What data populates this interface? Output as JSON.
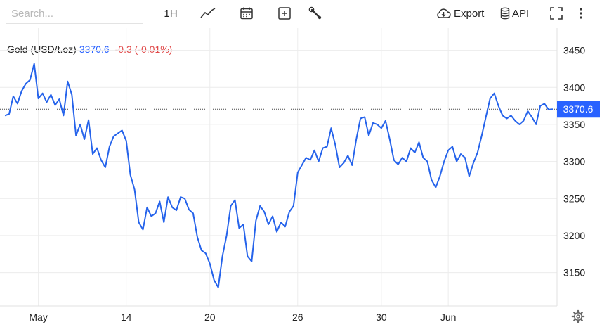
{
  "toolbar": {
    "search_placeholder": "Search...",
    "timeframe_label": "1H",
    "export_label": "Export",
    "api_label": "API"
  },
  "legend": {
    "name": "Gold (USD/t.oz)",
    "price": "3370.6",
    "change": "-0.3 (-0.01%)"
  },
  "colors": {
    "line": "#2563eb",
    "price_tag": "#2962ff",
    "change_negative": "#e04848",
    "grid": "#ececec"
  },
  "chart_data": {
    "type": "line",
    "title": "",
    "xlabel": "",
    "ylabel": "",
    "ylim": [
      3105,
      3480
    ],
    "yticks": [
      3150,
      3200,
      3250,
      3300,
      3350,
      3400,
      3450
    ],
    "grid": true,
    "last_value": 3370.6,
    "xticks": [
      {
        "label": "May",
        "index": 8
      },
      {
        "label": "14",
        "index": 29
      },
      {
        "label": "20",
        "index": 49
      },
      {
        "label": "26",
        "index": 70
      },
      {
        "label": "30",
        "index": 90
      },
      {
        "label": "Jun",
        "index": 106
      }
    ],
    "series": [
      {
        "values": [
          3362,
          3364,
          3388,
          3378,
          3395,
          3405,
          3410,
          3432,
          3385,
          3392,
          3380,
          3390,
          3376,
          3384,
          3362,
          3408,
          3390,
          3335,
          3350,
          3330,
          3356,
          3310,
          3318,
          3302,
          3292,
          3320,
          3334,
          3338,
          3342,
          3328,
          3282,
          3262,
          3218,
          3208,
          3238,
          3226,
          3230,
          3246,
          3218,
          3252,
          3238,
          3234,
          3252,
          3250,
          3235,
          3230,
          3198,
          3180,
          3176,
          3162,
          3140,
          3130,
          3172,
          3200,
          3240,
          3248,
          3210,
          3215,
          3172,
          3165,
          3220,
          3240,
          3232,
          3215,
          3226,
          3205,
          3218,
          3212,
          3232,
          3240,
          3285,
          3295,
          3305,
          3302,
          3315,
          3300,
          3318,
          3320,
          3345,
          3322,
          3292,
          3298,
          3308,
          3295,
          3330,
          3358,
          3360,
          3335,
          3352,
          3350,
          3345,
          3355,
          3330,
          3302,
          3296,
          3305,
          3300,
          3318,
          3312,
          3326,
          3305,
          3300,
          3275,
          3265,
          3280,
          3300,
          3315,
          3320,
          3300,
          3310,
          3305,
          3280,
          3298,
          3312,
          3335,
          3360,
          3385,
          3392,
          3375,
          3362,
          3358,
          3362,
          3355,
          3350,
          3355,
          3368,
          3360,
          3350,
          3375,
          3378,
          3370,
          3370.6
        ]
      }
    ]
  }
}
